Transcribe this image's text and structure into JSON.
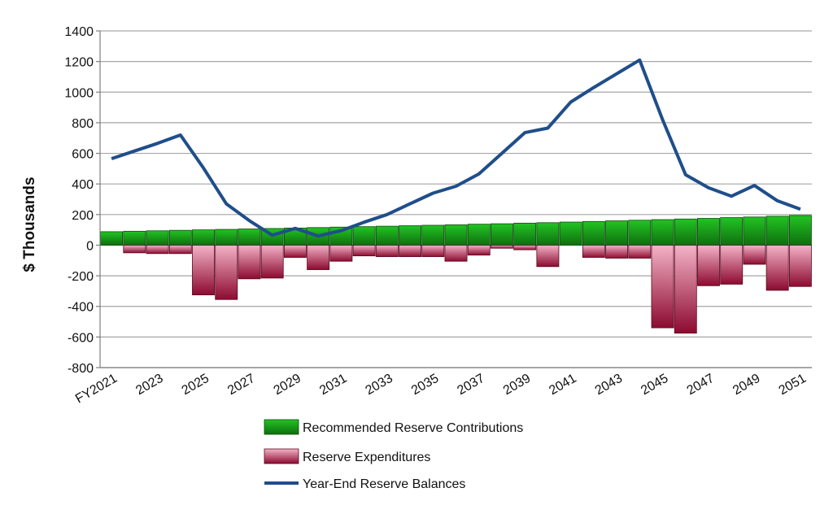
{
  "chart_data": {
    "type": "bar",
    "title": "",
    "xlabel": "",
    "ylabel": "$ Thousands",
    "ylim": [
      -800,
      1400
    ],
    "yticks": [
      1400,
      1200,
      1000,
      800,
      600,
      400,
      200,
      0,
      -200,
      -400,
      -600,
      -800
    ],
    "grid": true,
    "legend_position": "bottom",
    "x_tick_labels": [
      "FY2021",
      "2023",
      "2025",
      "2027",
      "2029",
      "2031",
      "2033",
      "2035",
      "2037",
      "2039",
      "2041",
      "2043",
      "2045",
      "2047",
      "2049",
      "2051"
    ],
    "categories": [
      "FY2021",
      "2022",
      "2023",
      "2024",
      "2025",
      "2026",
      "2027",
      "2028",
      "2029",
      "2030",
      "2031",
      "2032",
      "2033",
      "2034",
      "2035",
      "2036",
      "2037",
      "2038",
      "2039",
      "2040",
      "2041",
      "2042",
      "2043",
      "2044",
      "2045",
      "2046",
      "2047",
      "2048",
      "2049",
      "2050",
      "2051"
    ],
    "series": [
      {
        "name": "Recommended Reserve Contributions",
        "type": "bar",
        "color": "#1f9a1f",
        "values": [
          88,
          91,
          94,
          97,
          100,
          103,
          106,
          109,
          112,
          115,
          118,
          121,
          124,
          127,
          130,
          133,
          137,
          140,
          144,
          147,
          151,
          155,
          159,
          163,
          167,
          171,
          175,
          180,
          184,
          189,
          194
        ]
      },
      {
        "name": "Reserve Expenditures",
        "type": "bar",
        "color": "#a01040",
        "values": [
          0,
          -50,
          -55,
          -55,
          -325,
          -355,
          -220,
          -215,
          -80,
          -160,
          -105,
          -70,
          -75,
          -75,
          -75,
          -105,
          -65,
          -20,
          -30,
          -140,
          0,
          -80,
          -85,
          -85,
          -540,
          -575,
          -265,
          -255,
          -125,
          -295,
          -270
        ]
      },
      {
        "name": "Year-End Reserve Balances",
        "type": "line",
        "color": "#1f4e8a",
        "values": [
          565,
          615,
          665,
          720,
          505,
          270,
          160,
          65,
          110,
          60,
          95,
          150,
          200,
          270,
          340,
          385,
          465,
          600,
          735,
          765,
          935,
          1030,
          1120,
          1210,
          820,
          460,
          375,
          320,
          390,
          290,
          235
        ]
      }
    ]
  }
}
